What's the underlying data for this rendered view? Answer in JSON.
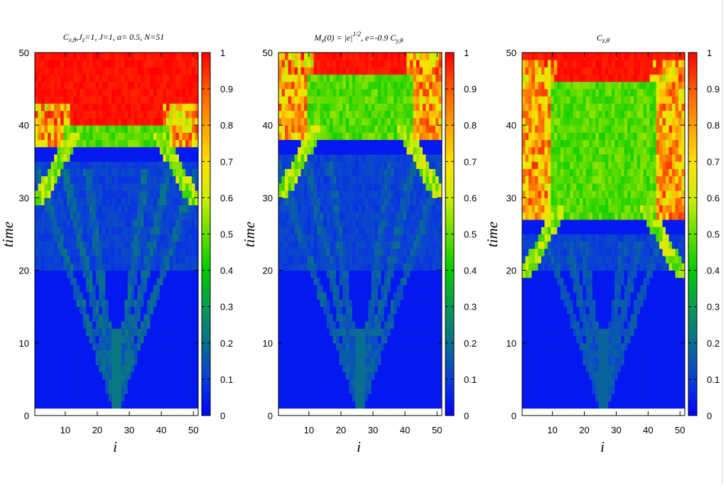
{
  "chart_data": [
    {
      "type": "heatmap",
      "title": "C_{x,θ}, J_z=1,  J=1, α= 0.5, N=51",
      "title_parts": {
        "a": "C",
        "a_sub": "x,θ",
        "b": ",J",
        "b_sub": "z",
        "c": "=1,  J=1, α= 0.5, N=51"
      },
      "xlabel": "i",
      "ylabel": "time",
      "xlim": [
        0.5,
        51.5
      ],
      "ylim": [
        0,
        50
      ],
      "x_ticks": [
        "10",
        "20",
        "30",
        "40",
        "50"
      ],
      "y_ticks": [
        "0",
        "10",
        "20",
        "30",
        "40",
        "50"
      ],
      "colorbar": {
        "range": [
          0,
          1
        ],
        "ticks": [
          "0",
          "0.1",
          "0.2",
          "0.3",
          "0.4",
          "0.5",
          "0.6",
          "0.7",
          "0.8",
          "0.9",
          "1"
        ]
      },
      "features": {
        "bottom_band_value": 0.0,
        "cone_apex_time": 1,
        "red_front_time": 40,
        "green_band_time": 37,
        "cone_color_value": 0.22
      }
    },
    {
      "type": "heatmap",
      "title": "M_x(0) = |e|^{1/2}, e=-0.9  C_{y,θ}",
      "title_parts": {
        "a": "M",
        "a_sub": "x",
        "b": "(0) = |e|",
        "b_sup": "1/2",
        "c": ", e=-0.9  C",
        "c_sub": "y,θ"
      },
      "xlabel": "i",
      "ylabel": "time",
      "xlim": [
        0.5,
        51.5
      ],
      "ylim": [
        0,
        50
      ],
      "x_ticks": [
        "10",
        "20",
        "30",
        "40",
        "50"
      ],
      "y_ticks": [
        "0",
        "10",
        "20",
        "30",
        "40",
        "50"
      ],
      "colorbar": {
        "range": [
          0,
          1
        ],
        "ticks": [
          "0",
          "0.1",
          "0.2",
          "0.3",
          "0.4",
          "0.5",
          "0.6",
          "0.7",
          "0.8",
          "0.9",
          "1"
        ]
      },
      "features": {
        "bottom_band_value": 0.0,
        "cone_apex_time": 1,
        "red_front_time": 47,
        "green_band_time": 38,
        "cone_color_value": 0.2
      }
    },
    {
      "type": "heatmap",
      "title": "C_{z,θ}",
      "title_parts": {
        "a": "C",
        "a_sub": "z,θ"
      },
      "xlabel": "i",
      "ylabel": "time",
      "xlim": [
        0.5,
        51.5
      ],
      "ylim": [
        0,
        50
      ],
      "x_ticks": [
        "10",
        "20",
        "30",
        "40",
        "50"
      ],
      "y_ticks": [
        "0",
        "10",
        "20",
        "30",
        "40",
        "50"
      ],
      "colorbar": {
        "range": [
          0,
          1
        ],
        "ticks": [
          "0",
          "0.1",
          "0.2",
          "0.3",
          "0.4",
          "0.5",
          "0.6",
          "0.7",
          "0.8",
          "0.9",
          "1"
        ]
      },
      "features": {
        "bottom_band_value": 0.0,
        "cone_apex_time": 1,
        "red_front_time": 46,
        "green_band_time": 27,
        "cone_color_value": 0.18
      }
    }
  ],
  "colormap": [
    "#0000ff",
    "#0a3ed8",
    "#0a6e90",
    "#0a9a50",
    "#00cc00",
    "#66dd00",
    "#ccee00",
    "#ffe000",
    "#ffa000",
    "#ff5a00",
    "#ff0000"
  ]
}
